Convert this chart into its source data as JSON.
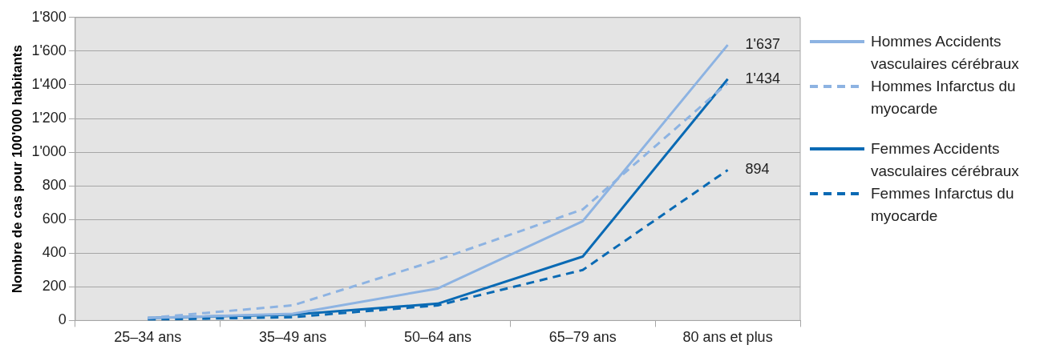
{
  "chart_data": {
    "type": "line",
    "ylabel": "Nombre de cas pour 100'000 habitants",
    "categories": [
      "25–34 ans",
      "35–49 ans",
      "50–64 ans",
      "65–79 ans",
      "80 ans et plus"
    ],
    "series": [
      {
        "name": "Hommes Accidents vasculaires cérébraux",
        "color": "#8db3e2",
        "line_style": "solid",
        "values": [
          15,
          40,
          190,
          590,
          1637
        ],
        "value_labels": [
          null,
          null,
          null,
          null,
          "1'637"
        ]
      },
      {
        "name": "Hommes Infarctus du myocarde",
        "color": "#8db3e2",
        "line_style": "dashed",
        "values": [
          15,
          90,
          360,
          660,
          1410
        ]
      },
      {
        "name": "Femmes Accidents vasculaires cérébraux",
        "color": "#0a6ab4",
        "line_style": "solid",
        "values": [
          15,
          35,
          100,
          380,
          1434
        ],
        "value_labels": [
          null,
          null,
          null,
          null,
          "1'434"
        ]
      },
      {
        "name": "Femmes Infarctus du myocarde",
        "color": "#0a6ab4",
        "line_style": "dashed",
        "values": [
          5,
          20,
          90,
          300,
          894
        ],
        "value_labels": [
          null,
          null,
          null,
          null,
          "894"
        ]
      }
    ],
    "ylim": [
      0,
      1800
    ],
    "yticks": [
      0,
      200,
      400,
      600,
      800,
      {
        "value": 1000,
        "label": "1'000"
      },
      {
        "value": 1200,
        "label": "1'200"
      },
      {
        "value": 1400,
        "label": "1'400"
      },
      {
        "value": 1600,
        "label": "1'600"
      },
      {
        "value": 1800,
        "label": "1'800"
      }
    ],
    "grid": "y",
    "legend": "right",
    "marker": "none"
  }
}
